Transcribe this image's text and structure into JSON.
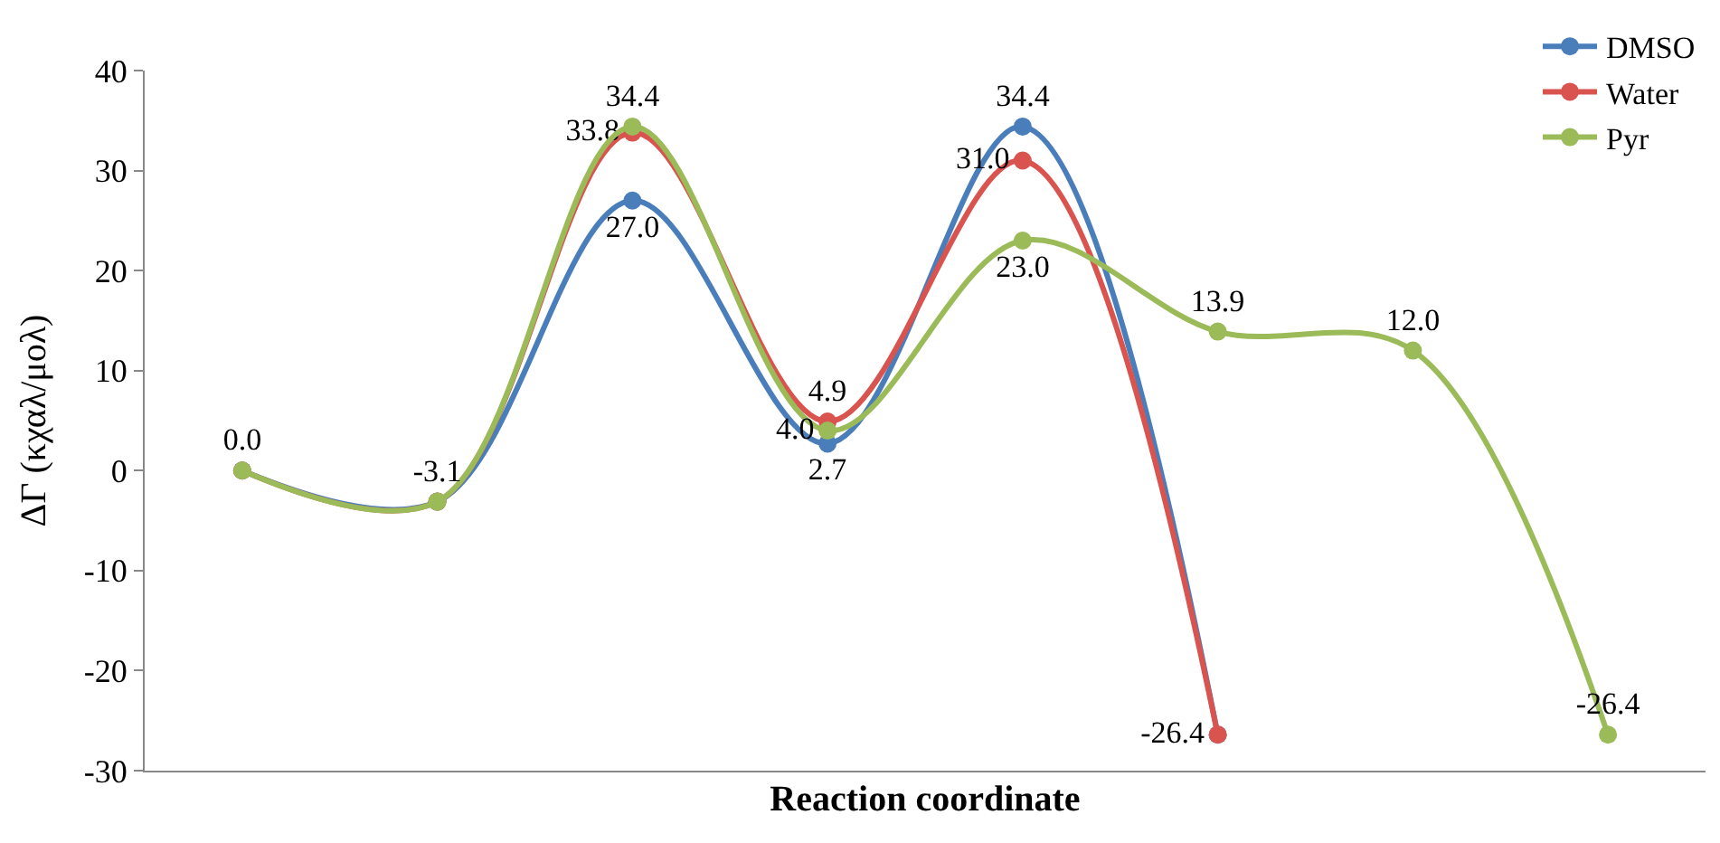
{
  "chart_data": {
    "type": "line",
    "xlabel": "Reaction coordinate",
    "ylabel": "ΔΓ (κχαλ/μολ)",
    "categories": [
      null,
      null,
      null,
      null,
      null,
      null,
      null,
      null
    ],
    "series": [
      {
        "name": "DMSO",
        "color": "#4a7ebb",
        "values": [
          0.0,
          -3.1,
          27.0,
          2.7,
          34.4,
          -26.4,
          null,
          null
        ],
        "value_labels": [
          null,
          null,
          "27.0",
          "2.7",
          "34.4",
          null,
          null,
          null
        ]
      },
      {
        "name": "Water",
        "color": "#d9534f",
        "values": [
          0.0,
          -3.1,
          33.8,
          4.9,
          31.0,
          -26.4,
          null,
          null
        ],
        "value_labels": [
          null,
          null,
          "33.8",
          "4.9",
          "31.0",
          "-26.4",
          null,
          null
        ]
      },
      {
        "name": "Pyr",
        "color": "#9bbb59",
        "values": [
          0.0,
          -3.1,
          34.4,
          4.0,
          23.0,
          13.9,
          12.0,
          -26.4
        ],
        "value_labels": [
          "0.0",
          "-3.1",
          "34.4",
          "4.0",
          "23.0",
          "13.9",
          "12.0",
          "-26.4"
        ]
      }
    ],
    "ylim": [
      -30,
      40
    ],
    "yticks": [
      -30,
      -20,
      -10,
      0,
      10,
      20,
      30,
      40
    ],
    "legend": "top right",
    "marker": "circle",
    "line_style": "solid"
  }
}
